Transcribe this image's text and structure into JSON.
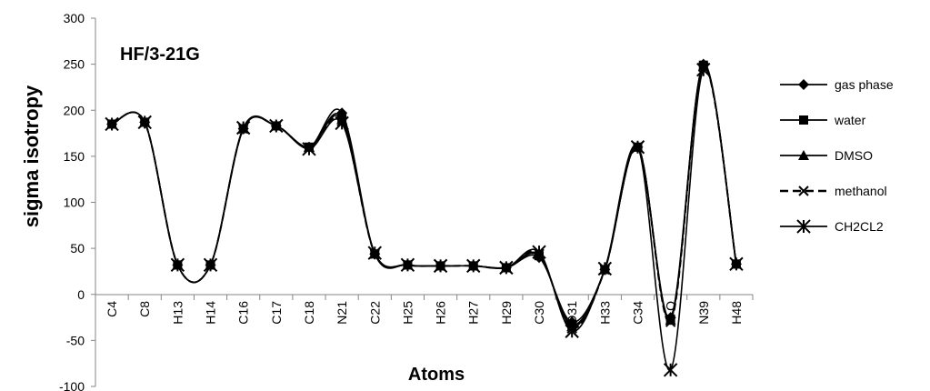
{
  "chart_data": {
    "type": "line",
    "title": "HF/3-21G",
    "xlabel": "Atoms",
    "ylabel": "sigma isotropy",
    "ylim": [
      -100,
      300
    ],
    "yticks": [
      -100,
      -50,
      0,
      50,
      100,
      150,
      200,
      250,
      300
    ],
    "grid": false,
    "legend_position": "right",
    "categories": [
      "C4",
      "C8",
      "H13",
      "H14",
      "C16",
      "C17",
      "C18",
      "N21",
      "C22",
      "H25",
      "H26",
      "H27",
      "H29",
      "C30",
      "O31",
      "H33",
      "C34",
      "O",
      "N39",
      "H48"
    ],
    "series": [
      {
        "name": "gas phase",
        "marker": "diamond",
        "values": [
          185,
          187,
          32,
          32,
          180,
          183,
          160,
          197,
          44,
          32,
          31,
          31,
          29,
          40,
          -30,
          27,
          160,
          -25,
          250,
          33
        ]
      },
      {
        "name": "water",
        "marker": "square",
        "values": [
          185,
          187,
          32,
          32,
          180,
          183,
          160,
          192,
          44,
          32,
          31,
          31,
          29,
          42,
          -33,
          27,
          160,
          -27,
          249,
          33
        ]
      },
      {
        "name": "DMSO",
        "marker": "triangle",
        "values": [
          185,
          187,
          32,
          32,
          180,
          183,
          160,
          190,
          44,
          32,
          31,
          31,
          29,
          43,
          -35,
          27,
          160,
          -28,
          248,
          33
        ]
      },
      {
        "name": "methanol",
        "marker": "x",
        "values": [
          185,
          187,
          32,
          32,
          180,
          183,
          159,
          188,
          44,
          32,
          31,
          31,
          29,
          44,
          -37,
          27,
          160,
          -30,
          247,
          33
        ]
      },
      {
        "name": "CH2CL2",
        "marker": "asterisk",
        "values": [
          185,
          187,
          32,
          32,
          181,
          183,
          158,
          186,
          45,
          32,
          31,
          31,
          29,
          46,
          -40,
          28,
          160,
          -82,
          244,
          33
        ]
      }
    ]
  }
}
